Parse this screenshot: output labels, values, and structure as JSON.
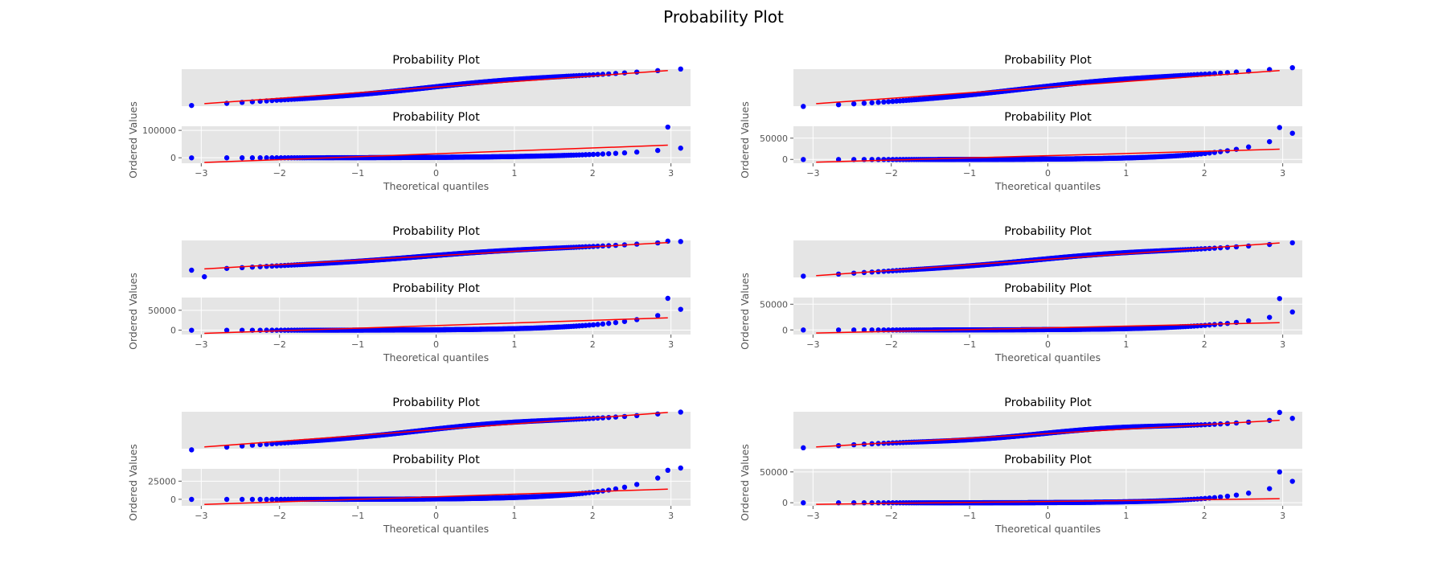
{
  "figure": {
    "title": "Probability Plot",
    "colors": {
      "axes_background": "#e5e5e5",
      "grid": "#ffffff",
      "points": "#0000ff",
      "fit_line": "#ff0000",
      "text": "#555555"
    }
  },
  "chart_data": [
    {
      "type": "scatter",
      "panel": "row1-left-top",
      "title": "Probability Plot",
      "xlabel": "",
      "ylabel": "",
      "xlim": [
        -3.25,
        3.25
      ],
      "ylim": [
        -0.2,
        10.2
      ],
      "grid": false,
      "x_ticks": [],
      "y_ticks": [],
      "points": {
        "x_range": [
          -2.96,
          2.96
        ],
        "shape": [
          0,
          0.55,
          0.15,
          0.1,
          0,
          0
        ]
      },
      "fit_line": {
        "x": [
          -2.96,
          2.96
        ],
        "y": [
          0.5,
          9.8
        ]
      }
    },
    {
      "type": "scatter",
      "panel": "row1-left-bottom",
      "title": "Probability Plot",
      "xlabel": "Theoretical quantiles",
      "ylabel": "Ordered Values",
      "xlim": [
        -3.25,
        3.25
      ],
      "ylim": [
        -20000,
        115000
      ],
      "grid": true,
      "x_ticks": [
        -3,
        -2,
        -1,
        0,
        1,
        2,
        3
      ],
      "x_tick_labels": [
        "−3",
        "−2",
        "−1",
        "0",
        "1",
        "2",
        "3"
      ],
      "y_ticks": [
        0,
        100000
      ],
      "y_tick_labels": [
        "0",
        "100000"
      ],
      "points": {
        "x_range": [
          -2.96,
          2.96
        ],
        "exp": {
          "a": 2000,
          "b": 0.8,
          "c": 1.15
        },
        "outliers": [
          {
            "x": 2.96,
            "y": 112000
          }
        ]
      },
      "fit_line": {
        "x": [
          -2.96,
          2.96
        ],
        "y": [
          -17000,
          46000
        ]
      }
    },
    {
      "type": "scatter",
      "panel": "row1-right-top",
      "title": "Probability Plot",
      "xlabel": "",
      "ylabel": "",
      "xlim": [
        -3.25,
        3.25
      ],
      "ylim": [
        -0.2,
        10.2
      ],
      "grid": false,
      "x_ticks": [],
      "y_ticks": [],
      "points": {
        "x_range": [
          -2.96,
          2.96
        ],
        "shape": [
          0,
          0.6,
          0.1,
          0.25,
          0.1,
          0.1
        ]
      },
      "fit_line": {
        "x": [
          -2.96,
          2.96
        ],
        "y": [
          0.5,
          9.8
        ]
      }
    },
    {
      "type": "scatter",
      "panel": "row1-right-bottom",
      "title": "Probability Plot",
      "xlabel": "Theoretical quantiles",
      "ylabel": "Ordered Values",
      "xlim": [
        -3.25,
        3.25
      ],
      "ylim": [
        -9000,
        78000
      ],
      "grid": true,
      "x_ticks": [
        -3,
        -2,
        -1,
        0,
        1,
        2,
        3
      ],
      "x_tick_labels": [
        "−3",
        "−2",
        "−1",
        "0",
        "1",
        "2",
        "3"
      ],
      "y_ticks": [
        0,
        50000
      ],
      "y_tick_labels": [
        "0",
        "50000"
      ],
      "points": {
        "x_range": [
          -2.96,
          2.96
        ],
        "exp": {
          "a": 1000,
          "b": 1.2,
          "c": 1.1
        },
        "outliers": [
          {
            "x": 2.96,
            "y": 75000
          }
        ]
      },
      "fit_line": {
        "x": [
          -2.96,
          2.96
        ],
        "y": [
          -6500,
          24000
        ]
      }
    },
    {
      "type": "scatter",
      "panel": "row2-left-top",
      "title": "Probability Plot",
      "xlabel": "",
      "ylabel": "",
      "xlim": [
        -3.25,
        3.25
      ],
      "ylim": [
        -0.2,
        10.2
      ],
      "grid": false,
      "x_ticks": [],
      "y_ticks": [],
      "points": {
        "x_range": [
          -2.96,
          2.96
        ],
        "shape": [
          0,
          0.3,
          0.1,
          0.1,
          0,
          0
        ]
      },
      "outliers": [
        {
          "x": -2.96,
          "y": 0
        },
        {
          "x": 2.96,
          "y": 10
        }
      ],
      "fit_line": {
        "x": [
          -2.96,
          2.96
        ],
        "y": [
          2.2,
          9.6
        ]
      }
    },
    {
      "type": "scatter",
      "panel": "row2-left-bottom",
      "title": "Probability Plot",
      "xlabel": "Theoretical quantiles",
      "ylabel": "Ordered Values",
      "xlim": [
        -3.25,
        3.25
      ],
      "ylim": [
        -11000,
        82000
      ],
      "grid": true,
      "x_ticks": [
        -3,
        -2,
        -1,
        0,
        1,
        2,
        3
      ],
      "x_tick_labels": [
        "−3",
        "−2",
        "−1",
        "0",
        "1",
        "2",
        "3"
      ],
      "y_ticks": [
        0,
        50000
      ],
      "y_tick_labels": [
        "0",
        "50000"
      ],
      "points": {
        "x_range": [
          -2.96,
          2.96
        ],
        "exp": {
          "a": 1200,
          "b": 1.1,
          "c": 1.1
        },
        "outliers": [
          {
            "x": 2.96,
            "y": 80000
          }
        ]
      },
      "fit_line": {
        "x": [
          -2.96,
          2.96
        ],
        "y": [
          -8000,
          31000
        ]
      }
    },
    {
      "type": "scatter",
      "panel": "row2-right-top",
      "title": "Probability Plot",
      "xlabel": "",
      "ylabel": "",
      "xlim": [
        -3.25,
        3.25
      ],
      "ylim": [
        -0.2,
        10.2
      ],
      "grid": false,
      "x_ticks": [],
      "y_ticks": [],
      "points": {
        "x_range": [
          -2.96,
          2.96
        ],
        "shape": [
          0,
          0.35,
          0.15,
          0.15,
          -0.1,
          0
        ]
      },
      "fit_line": {
        "x": [
          -2.96,
          2.96
        ],
        "y": [
          0.3,
          9.5
        ]
      }
    },
    {
      "type": "scatter",
      "panel": "row2-right-bottom",
      "title": "Probability Plot",
      "xlabel": "Theoretical quantiles",
      "ylabel": "Ordered Values",
      "xlim": [
        -3.25,
        3.25
      ],
      "ylim": [
        -9000,
        63000
      ],
      "grid": true,
      "x_ticks": [
        -3,
        -2,
        -1,
        0,
        1,
        2,
        3
      ],
      "x_tick_labels": [
        "−3",
        "−2",
        "−1",
        "0",
        "1",
        "2",
        "3"
      ],
      "y_ticks": [
        0,
        50000
      ],
      "y_tick_labels": [
        "0",
        "50000"
      ],
      "points": {
        "x_range": [
          -2.96,
          2.96
        ],
        "exp": {
          "a": 800,
          "b": 1.1,
          "c": 1.1
        },
        "outliers": [
          {
            "x": 2.96,
            "y": 61000
          }
        ]
      },
      "fit_line": {
        "x": [
          -2.96,
          2.96
        ],
        "y": [
          -6000,
          14000
        ]
      }
    },
    {
      "type": "scatter",
      "panel": "row3-left-top",
      "title": "Probability Plot",
      "xlabel": "",
      "ylabel": "",
      "xlim": [
        -3.25,
        3.25
      ],
      "ylim": [
        -0.2,
        10.2
      ],
      "grid": false,
      "x_ticks": [],
      "y_ticks": [],
      "points": {
        "x_range": [
          -2.96,
          2.96
        ],
        "shape": [
          0,
          0.4,
          0.2,
          0.2,
          0,
          -0.3
        ]
      },
      "fit_line": {
        "x": [
          -2.96,
          2.96
        ],
        "y": [
          0.3,
          10.0
        ]
      }
    },
    {
      "type": "scatter",
      "panel": "row3-left-bottom",
      "title": "Probability Plot",
      "xlabel": "Theoretical quantiles",
      "ylabel": "Ordered Values",
      "xlim": [
        -3.25,
        3.25
      ],
      "ylim": [
        -9000,
        42000
      ],
      "grid": true,
      "x_ticks": [
        -3,
        -2,
        -1,
        0,
        1,
        2,
        3
      ],
      "x_tick_labels": [
        "−3",
        "−2",
        "−1",
        "0",
        "1",
        "2",
        "3"
      ],
      "y_ticks": [
        0,
        25000
      ],
      "y_tick_labels": [
        "0",
        "25000"
      ],
      "points": {
        "x_range": [
          -2.96,
          2.96
        ],
        "exp": {
          "a": 700,
          "b": 1.2,
          "c": 1.1
        },
        "outliers": [
          {
            "x": 2.96,
            "y": 40000
          }
        ]
      },
      "fit_line": {
        "x": [
          -2.96,
          2.96
        ],
        "y": [
          -7000,
          14000
        ]
      }
    },
    {
      "type": "scatter",
      "panel": "row3-right-top",
      "title": "Probability Plot",
      "xlabel": "",
      "ylabel": "",
      "xlim": [
        -3.25,
        3.25
      ],
      "ylim": [
        -0.2,
        10.2
      ],
      "grid": false,
      "x_ticks": [],
      "y_ticks": [],
      "points": {
        "x_range": [
          -2.96,
          2.96
        ],
        "shape": [
          0,
          0.3,
          0.3,
          0.15,
          0,
          0.2
        ]
      },
      "outliers": [
        {
          "x": 2.96,
          "y": 10
        }
      ],
      "fit_line": {
        "x": [
          -2.96,
          2.96
        ],
        "y": [
          0.3,
          7.8
        ]
      }
    },
    {
      "type": "scatter",
      "panel": "row3-right-bottom",
      "title": "Probability Plot",
      "xlabel": "Theoretical quantiles",
      "ylabel": "Ordered Values",
      "xlim": [
        -3.25,
        3.25
      ],
      "ylim": [
        -5000,
        55000
      ],
      "grid": true,
      "x_ticks": [
        -3,
        -2,
        -1,
        0,
        1,
        2,
        3
      ],
      "x_tick_labels": [
        "−3",
        "−2",
        "−1",
        "0",
        "1",
        "2",
        "3"
      ],
      "y_ticks": [
        0,
        50000
      ],
      "y_tick_labels": [
        "0",
        "50000"
      ],
      "points": {
        "x_range": [
          -2.96,
          2.96
        ],
        "exp": {
          "a": 400,
          "b": 1.1,
          "c": 1.3
        },
        "outliers": [
          {
            "x": 2.96,
            "y": 50000
          }
        ]
      },
      "fit_line": {
        "x": [
          -2.96,
          2.96
        ],
        "y": [
          -2500,
          6500
        ]
      }
    }
  ]
}
